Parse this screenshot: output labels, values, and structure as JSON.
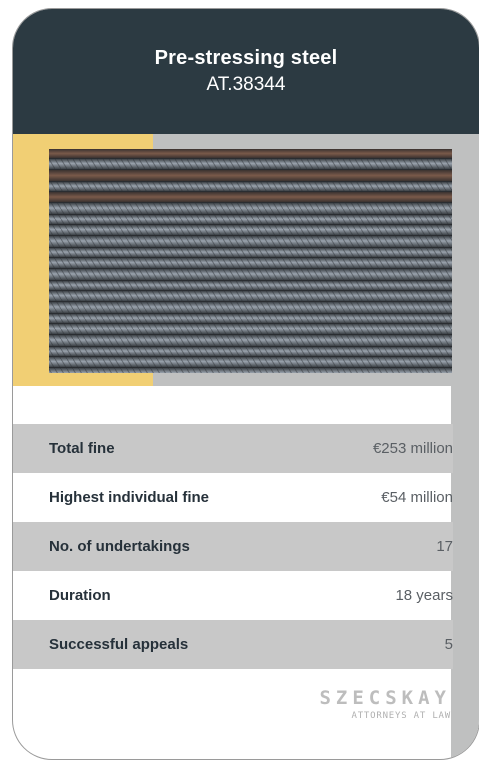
{
  "card": {
    "title": "Pre-stressing steel",
    "case_number": "AT.38344"
  },
  "image": {
    "description_icon": "steel-bars-photo"
  },
  "stats": [
    {
      "label": "Total fine",
      "value": "€253 million"
    },
    {
      "label": "Highest individual fine",
      "value": "€54 million"
    },
    {
      "label": "No. of undertakings",
      "value": "17"
    },
    {
      "label": "Duration",
      "value": "18 years"
    },
    {
      "label": "Successful appeals",
      "value": "5"
    }
  ],
  "logo": {
    "brand": "SZECSKAY",
    "tagline": "ATTORNEYS AT LAW"
  },
  "colors": {
    "header": "#2c3a42",
    "accent_yellow": "#f1cf74",
    "band_grey": "#bfc0c0",
    "row_shade": "#c8c8c8"
  }
}
